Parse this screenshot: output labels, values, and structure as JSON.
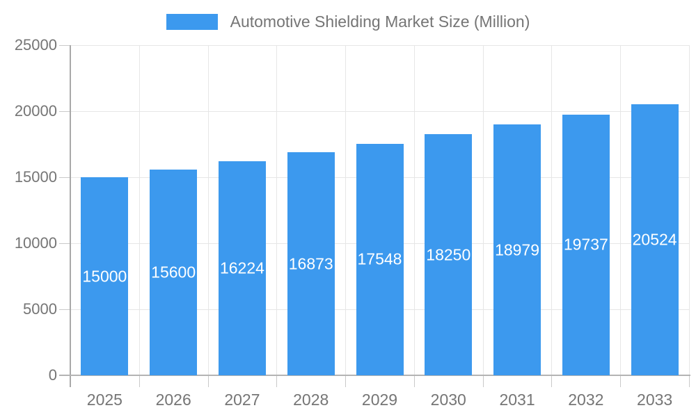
{
  "chart_data": {
    "type": "bar",
    "title": "Automotive Shielding Market Size (Million)",
    "legend": {
      "position": "top",
      "entries": [
        {
          "label": "Automotive Shielding Market Size (Million)",
          "swatch_color": "#3C99EE"
        }
      ]
    },
    "categories": [
      "2025",
      "2026",
      "2027",
      "2028",
      "2029",
      "2030",
      "2031",
      "2032",
      "2033"
    ],
    "series": [
      {
        "name": "Automotive Shielding Market Size (Million)",
        "values": [
          15000,
          15600,
          16224,
          16873,
          17548,
          18250,
          18979,
          19737,
          20524
        ]
      }
    ],
    "value_labels": [
      "15000",
      "15600",
      "16224",
      "16873",
      "17548",
      "18250",
      "18979",
      "19737",
      "20524"
    ],
    "xlabel": "",
    "ylabel": "",
    "ylim": [
      0,
      25000
    ],
    "y_ticks": [
      0,
      5000,
      10000,
      15000,
      20000,
      25000
    ],
    "y_tick_labels": [
      "0",
      "5000",
      "10000",
      "15000",
      "20000",
      "25000"
    ],
    "grid": "both",
    "colors": {
      "bar": "#3C99EE",
      "axis_text": "#757575",
      "value_label_text": "#ffffff",
      "gridline": "#e6e6e6",
      "tick": "#c9c9c9",
      "axis_line": "#b3b3b3"
    }
  }
}
